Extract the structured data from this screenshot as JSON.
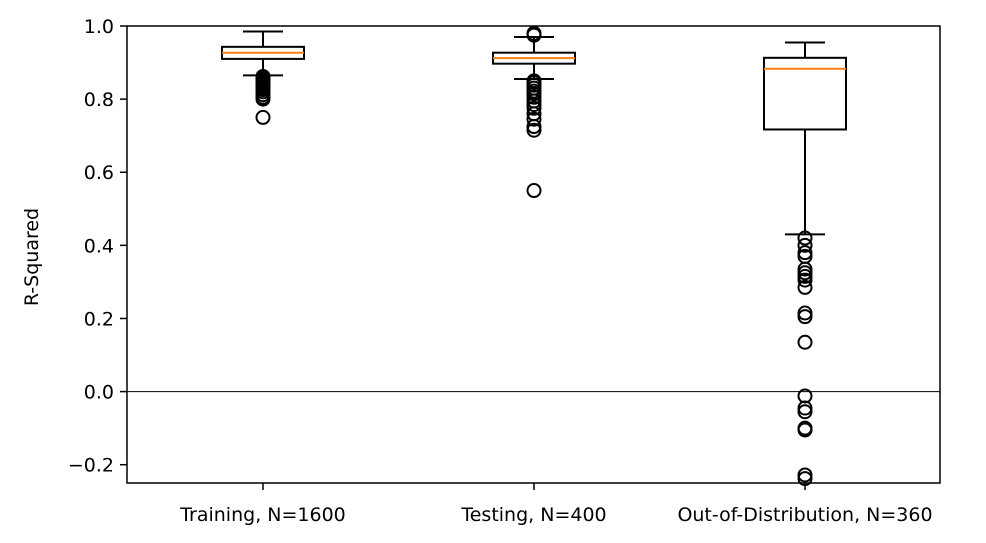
{
  "chart_data": {
    "type": "box",
    "title": "",
    "xlabel": "",
    "ylabel": "R-Squared",
    "ylim": [
      -0.25,
      1.0
    ],
    "yticks": [
      -0.2,
      0.0,
      0.2,
      0.4,
      0.6,
      0.8,
      1.0
    ],
    "ytick_labels": [
      "−0.2",
      "0.0",
      "0.2",
      "0.4",
      "0.6",
      "0.8",
      "1.0"
    ],
    "reference_line_y": 0.0,
    "grid": false,
    "colors": {
      "box": "#000000",
      "median": "#ff7f0e",
      "reference_line": "#000000"
    },
    "categories": [
      "Training, N=1600",
      "Testing, N=400",
      "Out-of-Distribution, N=360"
    ],
    "boxes": [
      {
        "label": "Training, N=1600",
        "whisker_low": 0.865,
        "q1": 0.91,
        "median": 0.927,
        "q3": 0.943,
        "whisker_high": 0.985,
        "outliers": [
          0.862,
          0.858,
          0.855,
          0.852,
          0.848,
          0.845,
          0.842,
          0.838,
          0.835,
          0.83,
          0.826,
          0.82,
          0.812,
          0.805,
          0.8,
          0.75
        ]
      },
      {
        "label": "Testing, N=400",
        "whisker_low": 0.855,
        "q1": 0.897,
        "median": 0.912,
        "q3": 0.927,
        "whisker_high": 0.97,
        "outliers": [
          0.98,
          0.975,
          0.85,
          0.845,
          0.838,
          0.83,
          0.822,
          0.815,
          0.805,
          0.795,
          0.785,
          0.775,
          0.76,
          0.745,
          0.725,
          0.715,
          0.55
        ]
      },
      {
        "label": "Out-of-Distribution, N=360",
        "whisker_low": 0.43,
        "q1": 0.717,
        "median": 0.883,
        "q3": 0.913,
        "whisker_high": 0.955,
        "outliers": [
          0.42,
          0.4,
          0.38,
          0.37,
          0.335,
          0.325,
          0.315,
          0.305,
          0.285,
          0.215,
          0.205,
          0.135,
          -0.012,
          -0.045,
          -0.055,
          -0.1,
          -0.105,
          -0.228,
          -0.238
        ]
      }
    ]
  }
}
